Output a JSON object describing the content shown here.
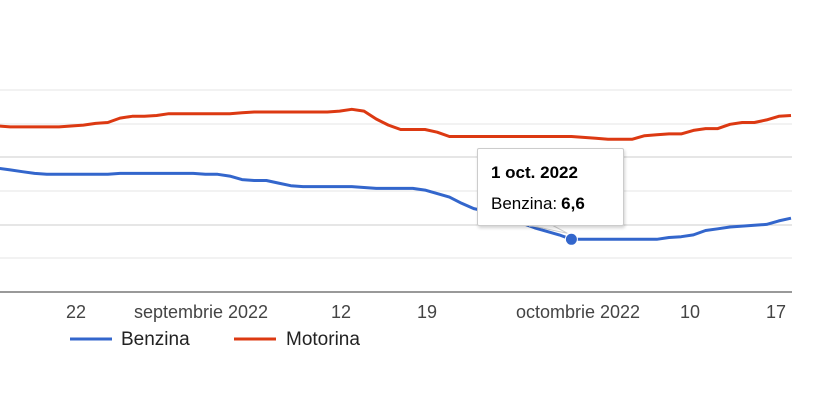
{
  "chart_data": {
    "type": "line",
    "x_tick_labels": [
      "22",
      "septembrie 2022",
      "12",
      "19",
      "octombrie 2022",
      "10",
      "17"
    ],
    "series": [
      {
        "name": "Benzina",
        "color": "#3366cc",
        "values": [
          [
            "2022-08-15",
            7.41
          ],
          [
            "2022-08-16",
            7.39
          ],
          [
            "2022-08-17",
            7.37
          ],
          [
            "2022-08-18",
            7.35
          ],
          [
            "2022-08-19",
            7.34
          ],
          [
            "2022-08-20",
            7.34
          ],
          [
            "2022-08-21",
            7.34
          ],
          [
            "2022-08-22",
            7.34
          ],
          [
            "2022-08-23",
            7.34
          ],
          [
            "2022-08-24",
            7.34
          ],
          [
            "2022-08-25",
            7.35
          ],
          [
            "2022-08-26",
            7.35
          ],
          [
            "2022-08-27",
            7.35
          ],
          [
            "2022-08-28",
            7.35
          ],
          [
            "2022-08-29",
            7.35
          ],
          [
            "2022-08-30",
            7.35
          ],
          [
            "2022-08-31",
            7.35
          ],
          [
            "2022-09-01",
            7.34
          ],
          [
            "2022-09-02",
            7.34
          ],
          [
            "2022-09-03",
            7.32
          ],
          [
            "2022-09-04",
            7.28
          ],
          [
            "2022-09-05",
            7.27
          ],
          [
            "2022-09-06",
            7.27
          ],
          [
            "2022-09-07",
            7.24
          ],
          [
            "2022-09-08",
            7.21
          ],
          [
            "2022-09-09",
            7.2
          ],
          [
            "2022-09-10",
            7.2
          ],
          [
            "2022-09-11",
            7.2
          ],
          [
            "2022-09-12",
            7.2
          ],
          [
            "2022-09-13",
            7.2
          ],
          [
            "2022-09-14",
            7.19
          ],
          [
            "2022-09-15",
            7.18
          ],
          [
            "2022-09-16",
            7.18
          ],
          [
            "2022-09-17",
            7.18
          ],
          [
            "2022-09-18",
            7.18
          ],
          [
            "2022-09-19",
            7.16
          ],
          [
            "2022-09-20",
            7.12
          ],
          [
            "2022-09-21",
            7.08
          ],
          [
            "2022-09-22",
            7.01
          ],
          [
            "2022-09-23",
            6.95
          ],
          [
            "2022-09-24",
            6.92
          ],
          [
            "2022-09-25",
            6.87
          ],
          [
            "2022-09-26",
            6.83
          ],
          [
            "2022-09-27",
            6.78
          ],
          [
            "2022-09-28",
            6.73
          ],
          [
            "2022-09-29",
            6.69
          ],
          [
            "2022-09-30",
            6.65
          ],
          [
            "2022-10-01",
            6.6
          ],
          [
            "2022-10-02",
            6.6
          ],
          [
            "2022-10-03",
            6.6
          ],
          [
            "2022-10-04",
            6.6
          ],
          [
            "2022-10-05",
            6.6
          ],
          [
            "2022-10-06",
            6.6
          ],
          [
            "2022-10-07",
            6.6
          ],
          [
            "2022-10-08",
            6.6
          ],
          [
            "2022-10-09",
            6.62
          ],
          [
            "2022-10-10",
            6.63
          ],
          [
            "2022-10-11",
            6.65
          ],
          [
            "2022-10-12",
            6.7
          ],
          [
            "2022-10-13",
            6.72
          ],
          [
            "2022-10-14",
            6.74
          ],
          [
            "2022-10-15",
            6.75
          ],
          [
            "2022-10-16",
            6.76
          ],
          [
            "2022-10-17",
            6.77
          ],
          [
            "2022-10-18",
            6.81
          ],
          [
            "2022-10-19",
            6.84
          ]
        ]
      },
      {
        "name": "Motorina",
        "color": "#dc3912",
        "values": [
          [
            "2022-08-15",
            7.89
          ],
          [
            "2022-08-16",
            7.88
          ],
          [
            "2022-08-17",
            7.88
          ],
          [
            "2022-08-18",
            7.88
          ],
          [
            "2022-08-19",
            7.88
          ],
          [
            "2022-08-20",
            7.88
          ],
          [
            "2022-08-21",
            7.89
          ],
          [
            "2022-08-22",
            7.9
          ],
          [
            "2022-08-23",
            7.92
          ],
          [
            "2022-08-24",
            7.93
          ],
          [
            "2022-08-25",
            7.98
          ],
          [
            "2022-08-26",
            8.0
          ],
          [
            "2022-08-27",
            8.0
          ],
          [
            "2022-08-28",
            8.01
          ],
          [
            "2022-08-29",
            8.03
          ],
          [
            "2022-08-30",
            8.03
          ],
          [
            "2022-08-31",
            8.03
          ],
          [
            "2022-09-01",
            8.03
          ],
          [
            "2022-09-02",
            8.03
          ],
          [
            "2022-09-03",
            8.03
          ],
          [
            "2022-09-04",
            8.04
          ],
          [
            "2022-09-05",
            8.05
          ],
          [
            "2022-09-06",
            8.05
          ],
          [
            "2022-09-07",
            8.05
          ],
          [
            "2022-09-08",
            8.05
          ],
          [
            "2022-09-09",
            8.05
          ],
          [
            "2022-09-10",
            8.05
          ],
          [
            "2022-09-11",
            8.05
          ],
          [
            "2022-09-12",
            8.06
          ],
          [
            "2022-09-13",
            8.08
          ],
          [
            "2022-09-14",
            8.06
          ],
          [
            "2022-09-15",
            7.97
          ],
          [
            "2022-09-16",
            7.9
          ],
          [
            "2022-09-17",
            7.85
          ],
          [
            "2022-09-18",
            7.85
          ],
          [
            "2022-09-19",
            7.85
          ],
          [
            "2022-09-20",
            7.82
          ],
          [
            "2022-09-21",
            7.77
          ],
          [
            "2022-09-22",
            7.77
          ],
          [
            "2022-09-23",
            7.77
          ],
          [
            "2022-09-24",
            7.77
          ],
          [
            "2022-09-25",
            7.77
          ],
          [
            "2022-09-26",
            7.77
          ],
          [
            "2022-09-27",
            7.77
          ],
          [
            "2022-09-28",
            7.77
          ],
          [
            "2022-09-29",
            7.77
          ],
          [
            "2022-09-30",
            7.77
          ],
          [
            "2022-10-01",
            7.77
          ],
          [
            "2022-10-02",
            7.76
          ],
          [
            "2022-10-03",
            7.75
          ],
          [
            "2022-10-04",
            7.74
          ],
          [
            "2022-10-05",
            7.74
          ],
          [
            "2022-10-06",
            7.74
          ],
          [
            "2022-10-07",
            7.78
          ],
          [
            "2022-10-08",
            7.79
          ],
          [
            "2022-10-09",
            7.8
          ],
          [
            "2022-10-10",
            7.8
          ],
          [
            "2022-10-11",
            7.84
          ],
          [
            "2022-10-12",
            7.86
          ],
          [
            "2022-10-13",
            7.86
          ],
          [
            "2022-10-14",
            7.91
          ],
          [
            "2022-10-15",
            7.93
          ],
          [
            "2022-10-16",
            7.93
          ],
          [
            "2022-10-17",
            7.96
          ],
          [
            "2022-10-18",
            8.0
          ],
          [
            "2022-10-19",
            8.01
          ]
        ]
      }
    ],
    "ylim": [
      6.0,
      8.3
    ],
    "grid": true,
    "legend": "bottom-left",
    "tooltip": {
      "title": "1 oct. 2022",
      "series": "Benzina",
      "label": "Benzina:",
      "value": "6,6"
    }
  }
}
